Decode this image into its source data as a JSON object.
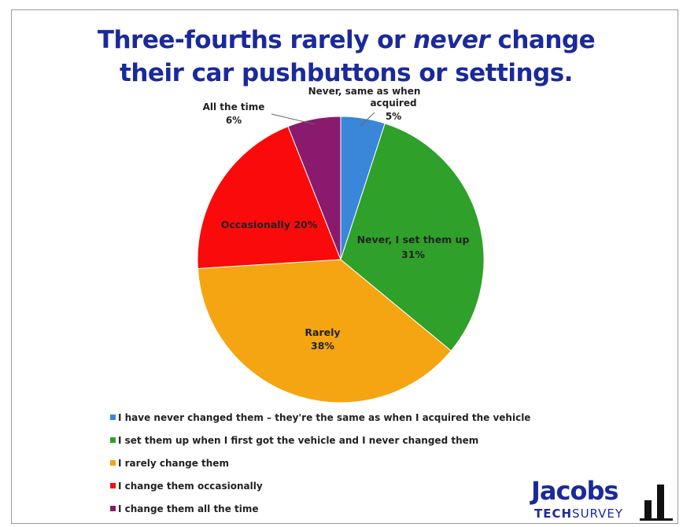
{
  "title": {
    "line1_part1": "Three-fourths rarely or ",
    "line1_emph": "never",
    "line1_part2": " change",
    "line2": "their car pushbuttons or settings."
  },
  "chart_data": {
    "type": "pie",
    "start_angle_deg": 0,
    "slices": [
      {
        "key": "never_same",
        "value": 5,
        "color": "#3a86d8",
        "label_lines": [
          "Never, same as when",
          "acquired",
          "5%"
        ]
      },
      {
        "key": "never_set",
        "value": 31,
        "color": "#2fa02a",
        "label_lines": [
          "Never, I set them up",
          "31%"
        ]
      },
      {
        "key": "rarely",
        "value": 38,
        "color": "#f5a511",
        "label_lines": [
          "Rarely",
          "38%"
        ]
      },
      {
        "key": "occasionally",
        "value": 20,
        "color": "#fa0a0a",
        "label_lines": [
          "Occasionally 20%"
        ]
      },
      {
        "key": "all_time",
        "value": 6,
        "color": "#8a1a6e",
        "label_lines": [
          "All the time",
          "6%"
        ]
      }
    ],
    "legend": [
      {
        "text": "I have never changed them – they're the same as when I acquired the vehicle",
        "color": "#3a86d8"
      },
      {
        "text": "I set them up when I first got the vehicle and I never changed them",
        "color": "#2fa02a"
      },
      {
        "text": "I rarely change them",
        "color": "#f5a511"
      },
      {
        "text": "I change them occasionally",
        "color": "#fa0a0a"
      },
      {
        "text": "I change them all the time",
        "color": "#8a1a6e"
      }
    ],
    "legend_position": "bottom"
  },
  "logo": {
    "word": "Jacobs",
    "sub_bold": "TECH",
    "sub_rest": "SURVEY"
  }
}
